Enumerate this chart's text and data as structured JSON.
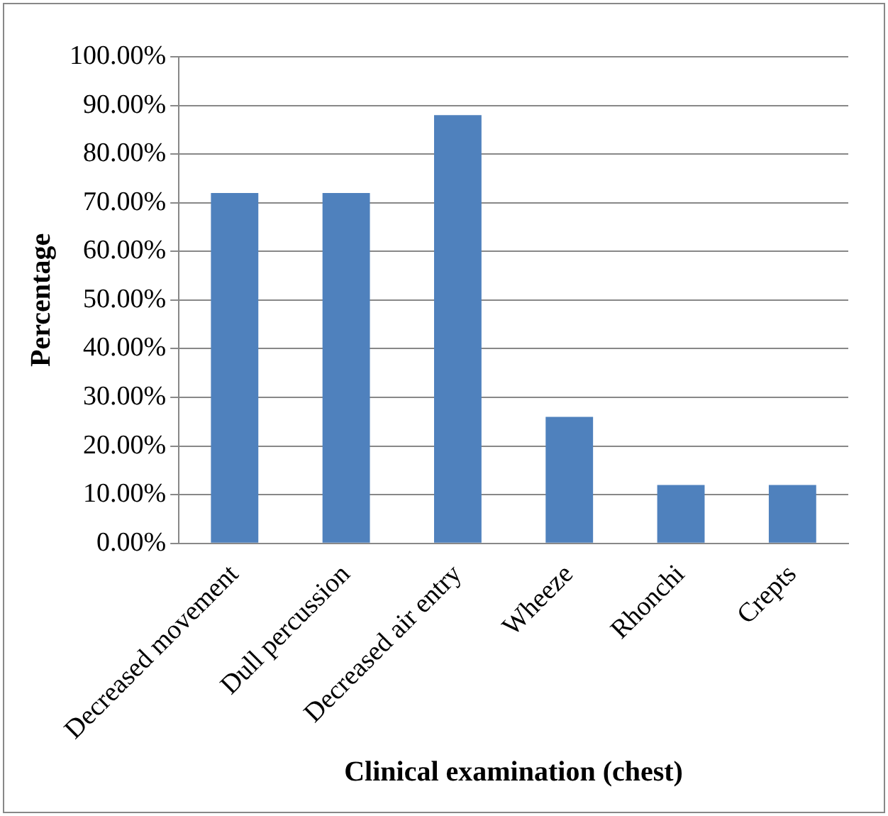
{
  "chart_data": {
    "type": "bar",
    "xlabel": "Clinical examination (chest)",
    "ylabel": "Percentage",
    "categories": [
      "Decreased movement",
      "Dull percussion",
      "Decreased air entry",
      "Wheeze",
      "Rhonchi",
      "Crepts"
    ],
    "values": [
      72,
      72,
      88,
      26,
      12,
      12
    ],
    "color": "#4f81bd",
    "ylim": [
      0,
      100
    ],
    "yticks": [
      {
        "value": 0,
        "label": "0.00%"
      },
      {
        "value": 10,
        "label": "10.00%"
      },
      {
        "value": 20,
        "label": "20.00%"
      },
      {
        "value": 30,
        "label": "30.00%"
      },
      {
        "value": 40,
        "label": "40.00%"
      },
      {
        "value": 50,
        "label": "50.00%"
      },
      {
        "value": 60,
        "label": "60.00%"
      },
      {
        "value": 70,
        "label": "70.00%"
      },
      {
        "value": 80,
        "label": "80.00%"
      },
      {
        "value": 90,
        "label": "90.00%"
      },
      {
        "value": 100,
        "label": "100.00%"
      }
    ],
    "grid": "y"
  }
}
